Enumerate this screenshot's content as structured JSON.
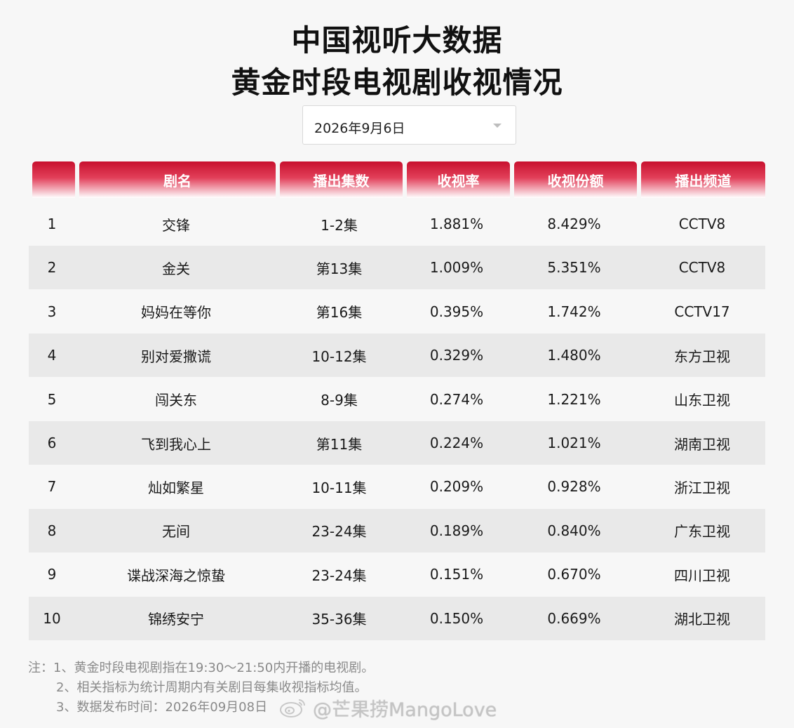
{
  "header": {
    "title_line1": "中国视听大数据",
    "title_line2": "黄金时段电视剧收视情况"
  },
  "date_select": {
    "value": "2026年9月6日",
    "icon": "chevron-down-icon"
  },
  "table": {
    "columns": [
      "",
      "剧名",
      "播出集数",
      "收视率",
      "收视份额",
      "播出频道"
    ],
    "rows": [
      {
        "rank": "1",
        "name": "交锋",
        "episodes": "1-2集",
        "rating": "1.881%",
        "share": "8.429%",
        "channel": "CCTV8"
      },
      {
        "rank": "2",
        "name": "金关",
        "episodes": "第13集",
        "rating": "1.009%",
        "share": "5.351%",
        "channel": "CCTV8"
      },
      {
        "rank": "3",
        "name": "妈妈在等你",
        "episodes": "第16集",
        "rating": "0.395%",
        "share": "1.742%",
        "channel": "CCTV17"
      },
      {
        "rank": "4",
        "name": "别对爱撒谎",
        "episodes": "10-12集",
        "rating": "0.329%",
        "share": "1.480%",
        "channel": "东方卫视"
      },
      {
        "rank": "5",
        "name": "闯关东",
        "episodes": "8-9集",
        "rating": "0.274%",
        "share": "1.221%",
        "channel": "山东卫视"
      },
      {
        "rank": "6",
        "name": "飞到我心上",
        "episodes": "第11集",
        "rating": "0.224%",
        "share": "1.021%",
        "channel": "湖南卫视"
      },
      {
        "rank": "7",
        "name": "灿如繁星",
        "episodes": "10-11集",
        "rating": "0.209%",
        "share": "0.928%",
        "channel": "浙江卫视"
      },
      {
        "rank": "8",
        "name": "无间",
        "episodes": "23-24集",
        "rating": "0.189%",
        "share": "0.840%",
        "channel": "广东卫视"
      },
      {
        "rank": "9",
        "name": "谍战深海之惊蛰",
        "episodes": "23-24集",
        "rating": "0.151%",
        "share": "0.670%",
        "channel": "四川卫视"
      },
      {
        "rank": "10",
        "name": "锦绣安宁",
        "episodes": "35-36集",
        "rating": "0.150%",
        "share": "0.669%",
        "channel": "湖北卫视"
      }
    ]
  },
  "notes": {
    "line1": "注：1、黄金时段电视剧指在19:30～21:50内开播的电视剧。",
    "line2": "2、相关指标为统计周期内有关剧目每集收视指标均值。",
    "line3": "3、数据发布时间：2026年09月08日"
  },
  "watermark": {
    "text": "@芒果捞MangoLove",
    "icon": "weibo-icon"
  },
  "colors": {
    "header_red": "#c8102e",
    "row_alt": "#e9e9e9",
    "background": "#f7f7f7"
  }
}
